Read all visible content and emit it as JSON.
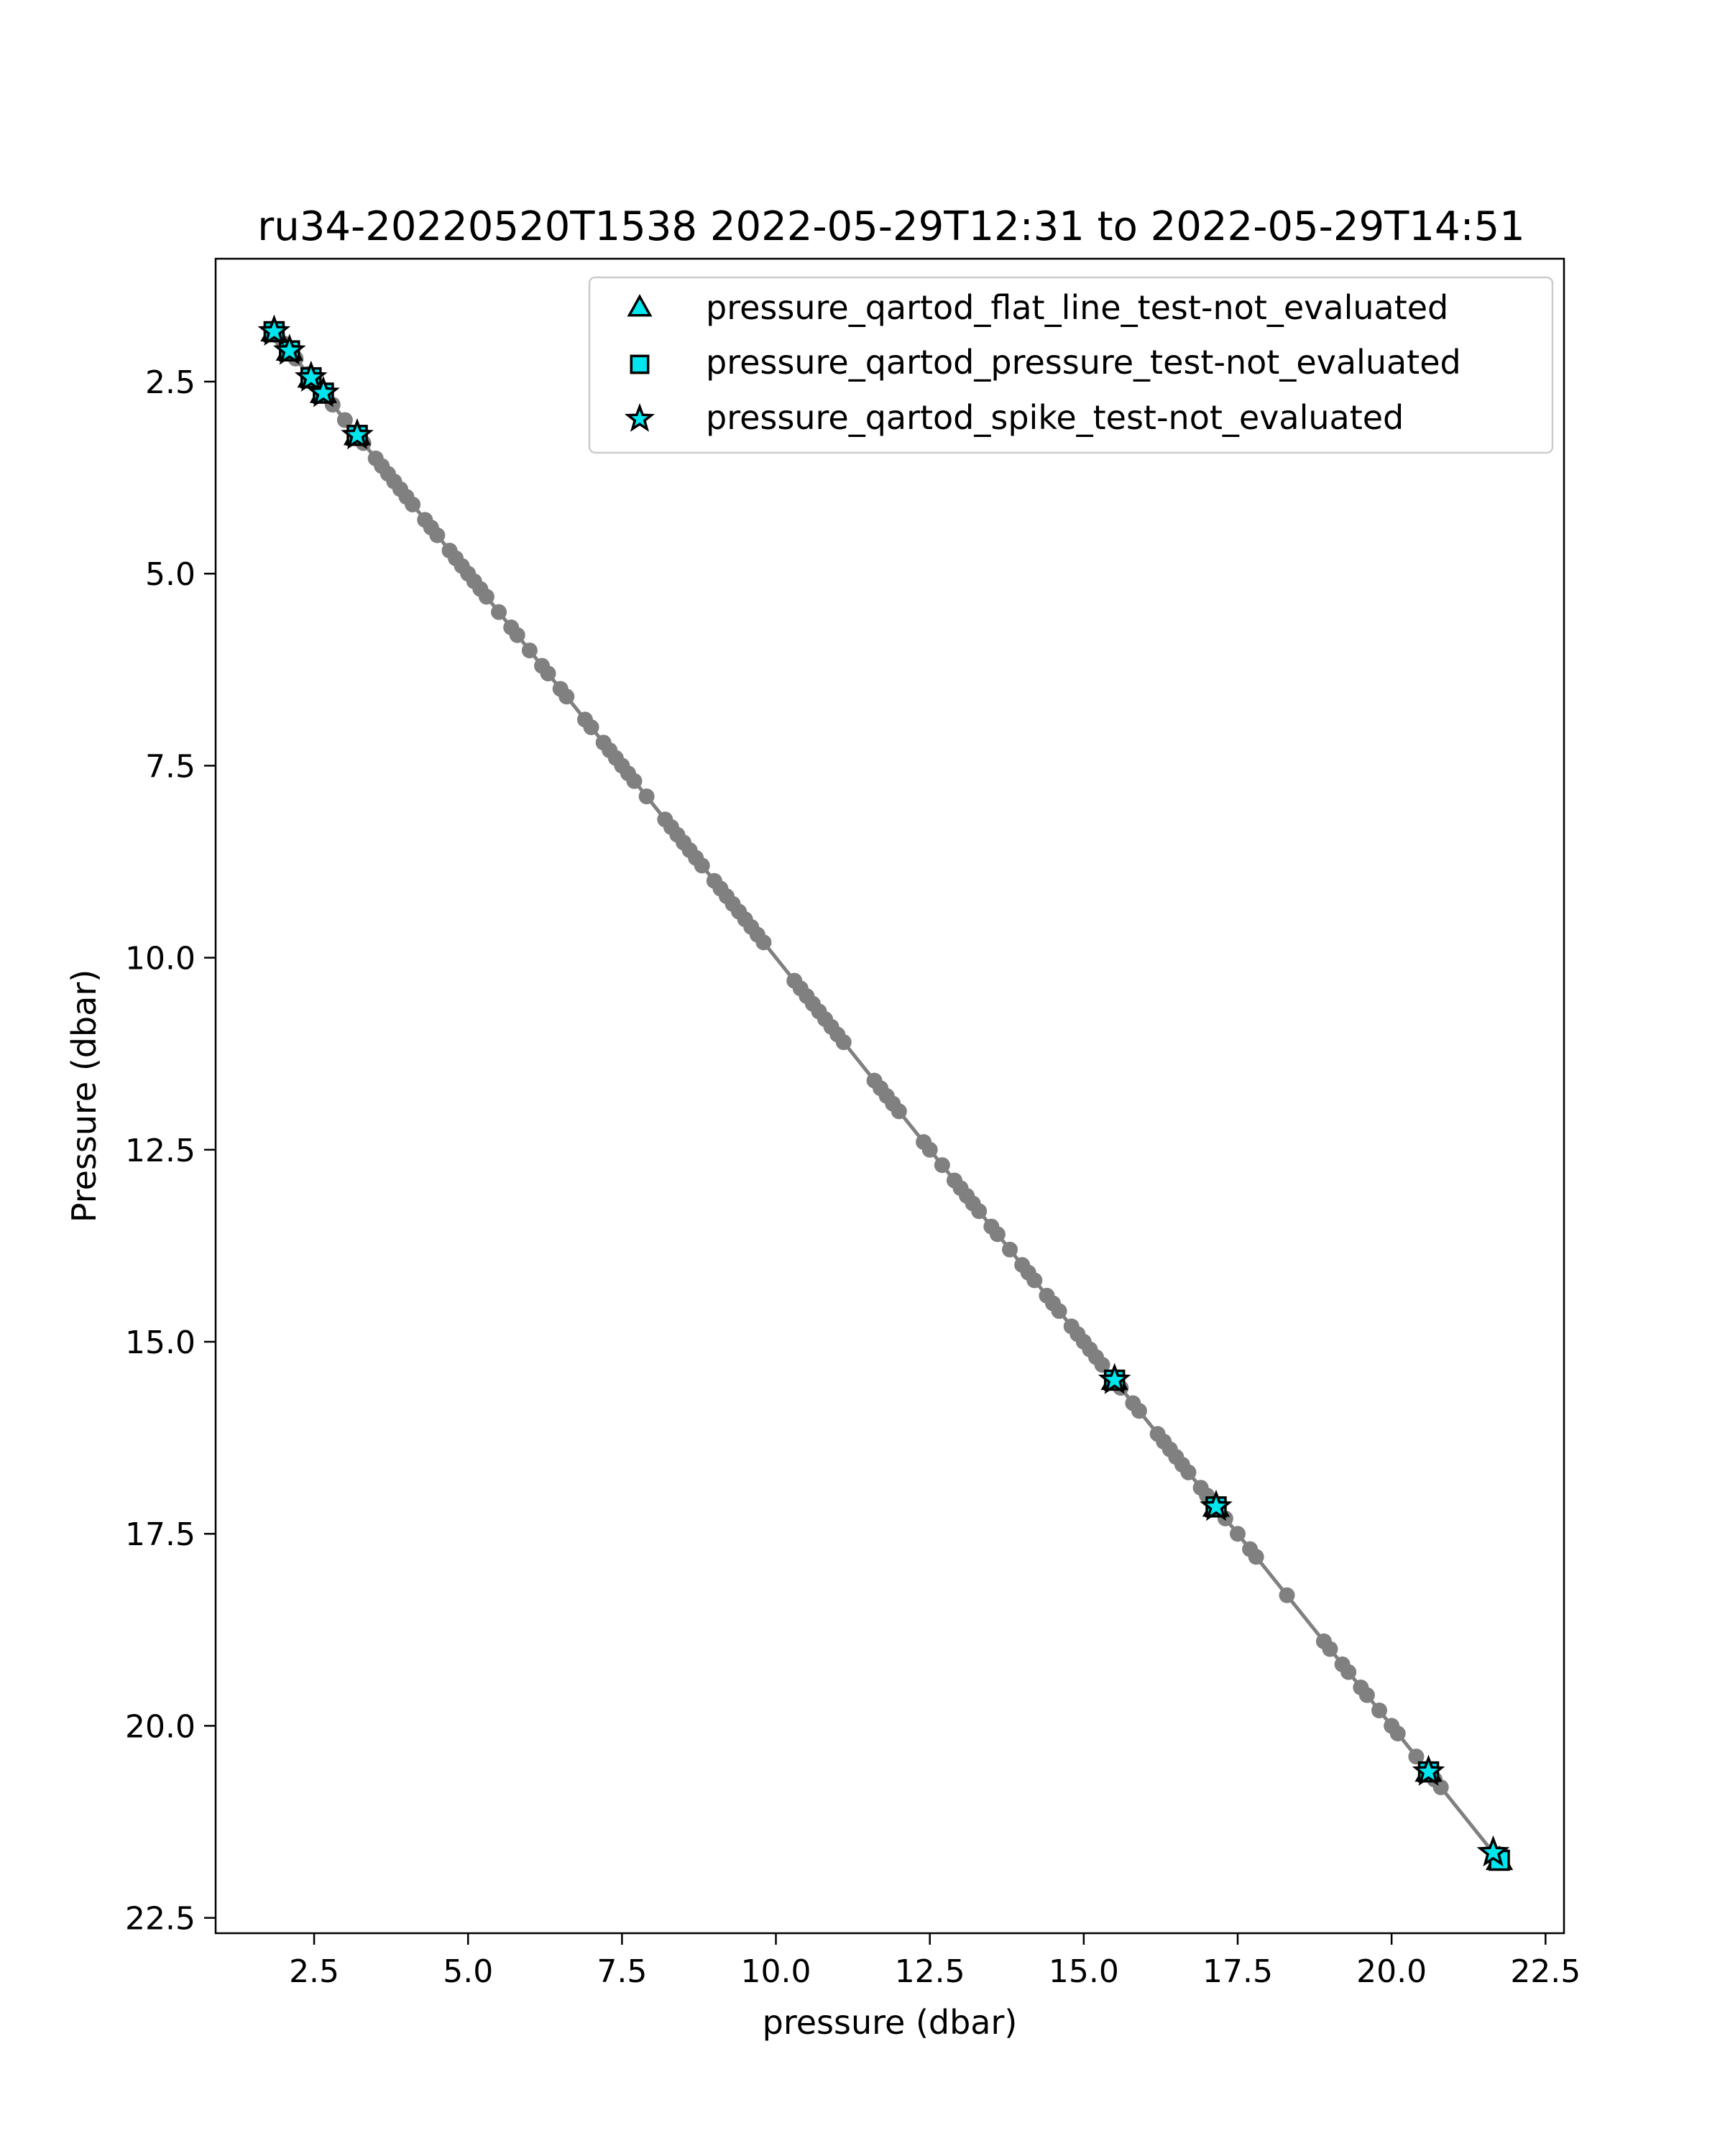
{
  "chart_data": {
    "type": "scatter",
    "title": "ru34-20220520T1538 2022-05-29T12:31 to 2022-05-29T14:51",
    "xlabel": "pressure (dbar)",
    "ylabel": "Pressure (dbar)",
    "xlim": [
      0.9,
      22.8
    ],
    "ylim": [
      22.7,
      0.9
    ],
    "y_inverted": true,
    "x_ticks": [
      "2.5",
      "5.0",
      "7.5",
      "10.0",
      "12.5",
      "15.0",
      "17.5",
      "20.0",
      "22.5"
    ],
    "y_ticks": [
      "2.5",
      "5.0",
      "7.5",
      "10.0",
      "12.5",
      "15.0",
      "17.5",
      "20.0",
      "22.5"
    ],
    "grid": false,
    "legend_position": "top-right",
    "colors": {
      "line": "#808080",
      "points": "#808080",
      "flag_fill": "#00e5ee",
      "flag_edge": "#000000"
    },
    "profile_line": [
      [
        1.85,
        1.85
      ],
      [
        21.8,
        21.8
      ]
    ],
    "profile_points": [
      1.9,
      2.0,
      2.1,
      2.2,
      2.4,
      2.6,
      2.8,
      3.0,
      3.3,
      3.5,
      3.6,
      3.7,
      3.8,
      3.9,
      4.0,
      4.1,
      4.3,
      4.4,
      4.5,
      4.7,
      4.8,
      4.9,
      5.0,
      5.1,
      5.2,
      5.3,
      5.5,
      5.7,
      5.8,
      6.0,
      6.2,
      6.3,
      6.5,
      6.6,
      6.9,
      7.0,
      7.2,
      7.3,
      7.4,
      7.5,
      7.6,
      7.7,
      7.9,
      8.2,
      8.3,
      8.4,
      8.5,
      8.6,
      8.7,
      8.8,
      9.0,
      9.1,
      9.2,
      9.3,
      9.4,
      9.5,
      9.6,
      9.7,
      9.8,
      10.3,
      10.4,
      10.5,
      10.6,
      10.7,
      10.8,
      10.9,
      11.0,
      11.1,
      11.6,
      11.7,
      11.8,
      11.9,
      12.0,
      12.4,
      12.5,
      12.7,
      12.9,
      13.0,
      13.1,
      13.2,
      13.3,
      13.5,
      13.6,
      13.8,
      14.0,
      14.1,
      14.2,
      14.4,
      14.5,
      14.6,
      14.8,
      14.9,
      15.0,
      15.1,
      15.2,
      15.3,
      15.6,
      15.8,
      15.9,
      16.2,
      16.3,
      16.4,
      16.5,
      16.6,
      16.7,
      16.9,
      17.0,
      17.3,
      17.5,
      17.7,
      17.8,
      18.3,
      18.9,
      19.0,
      19.2,
      19.3,
      19.5,
      19.6,
      19.8,
      20.0,
      20.1,
      20.4,
      20.7,
      20.8
    ],
    "series": [
      {
        "name": "pressure_qartod_flat_line_test-not_evaluated",
        "marker": "triangle",
        "points": [
          [
            1.85,
            1.85
          ],
          [
            2.1,
            2.1
          ],
          [
            2.45,
            2.45
          ],
          [
            2.65,
            2.65
          ],
          [
            3.2,
            3.2
          ],
          [
            15.5,
            15.5
          ],
          [
            17.15,
            17.15
          ],
          [
            20.6,
            20.6
          ],
          [
            21.75,
            21.75
          ]
        ]
      },
      {
        "name": "pressure_qartod_pressure_test-not_evaluated",
        "marker": "square",
        "points": [
          [
            1.85,
            1.85
          ],
          [
            2.1,
            2.1
          ],
          [
            2.45,
            2.45
          ],
          [
            2.65,
            2.65
          ],
          [
            3.2,
            3.2
          ],
          [
            15.5,
            15.5
          ],
          [
            17.15,
            17.15
          ],
          [
            20.6,
            20.6
          ],
          [
            21.75,
            21.75
          ]
        ]
      },
      {
        "name": "pressure_qartod_spike_test-not_evaluated",
        "marker": "star",
        "points": [
          [
            1.85,
            1.85
          ],
          [
            2.1,
            2.1
          ],
          [
            2.45,
            2.45
          ],
          [
            2.65,
            2.65
          ],
          [
            3.2,
            3.2
          ],
          [
            15.5,
            15.5
          ],
          [
            17.15,
            17.15
          ],
          [
            20.6,
            20.6
          ],
          [
            21.65,
            21.65
          ]
        ]
      }
    ]
  }
}
